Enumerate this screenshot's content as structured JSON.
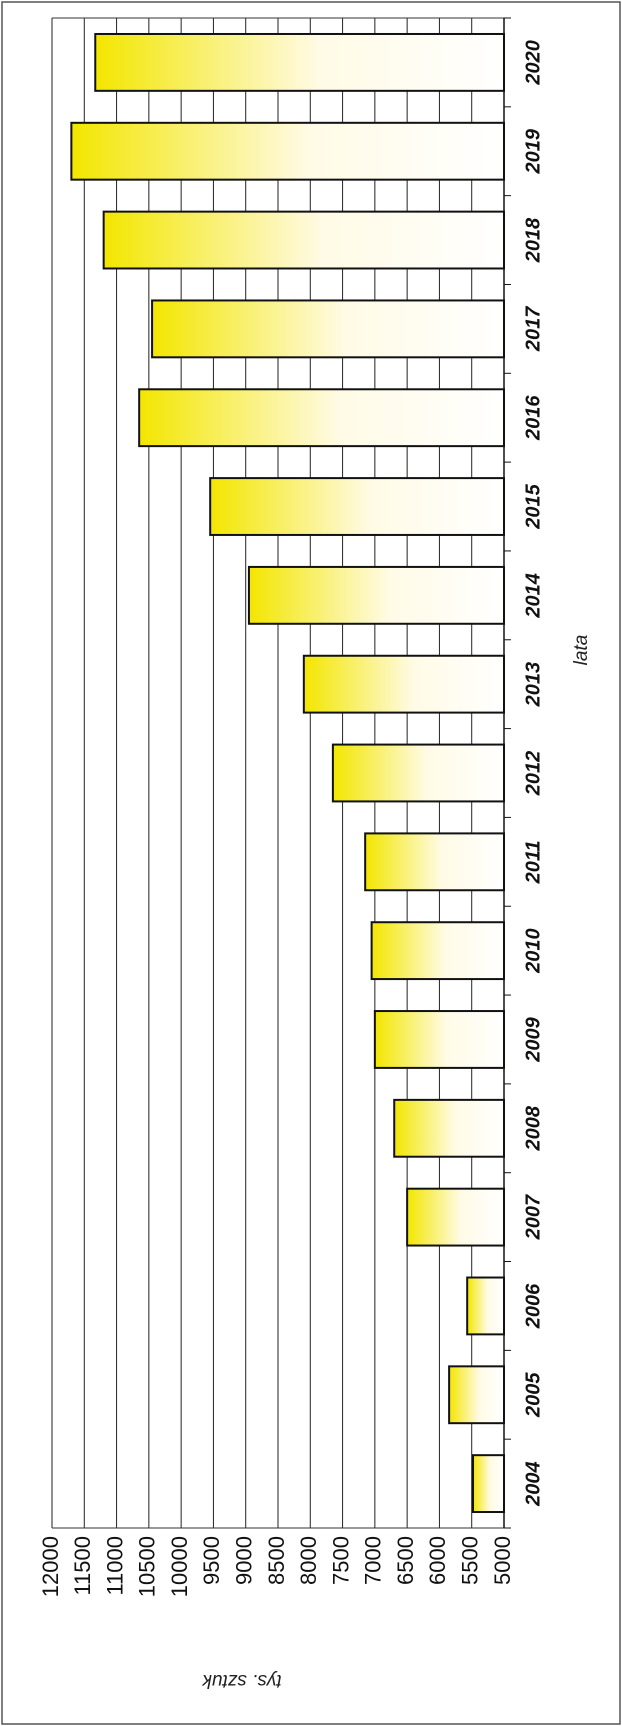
{
  "chart_data": {
    "type": "bar",
    "orientation": "horizontal",
    "categories": [
      "2004",
      "2005",
      "2006",
      "2007",
      "2008",
      "2009",
      "2010",
      "2011",
      "2012",
      "2013",
      "2014",
      "2015",
      "2016",
      "2017",
      "2018",
      "2019",
      "2020"
    ],
    "values": [
      5480,
      5850,
      5570,
      6500,
      6700,
      7000,
      7050,
      7150,
      7650,
      8100,
      8950,
      9550,
      10650,
      10450,
      11200,
      11700,
      11330
    ],
    "xlabel": "lata",
    "ylabel": "tys. sztuk",
    "ylim": [
      5000,
      12000
    ],
    "yticks": [
      5000,
      5500,
      6000,
      6500,
      7000,
      7500,
      8000,
      8500,
      9000,
      9500,
      10000,
      10500,
      11000,
      11500,
      12000
    ],
    "grid": true,
    "bar_color": "#f5e800",
    "bar_highlight": "#fffbe0",
    "bar_edge": "#111111"
  }
}
